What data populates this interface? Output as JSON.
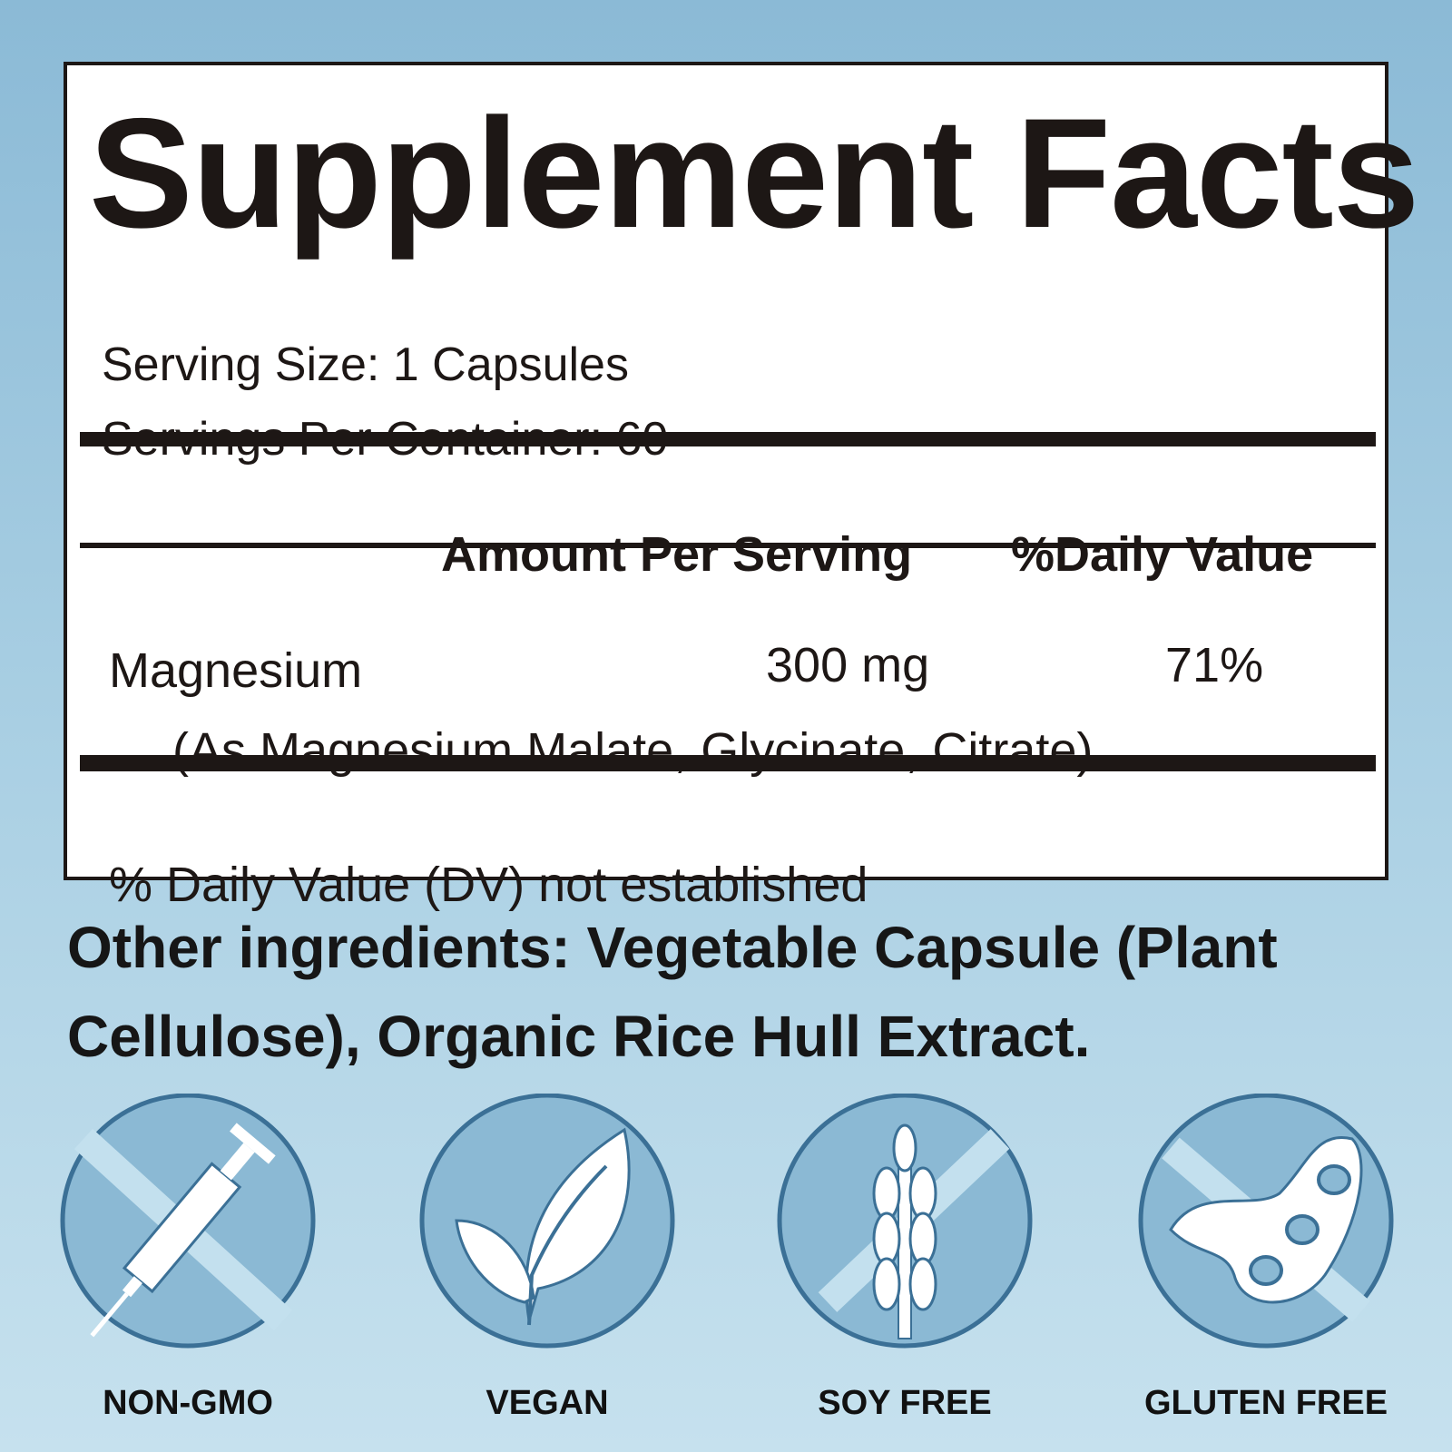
{
  "title": "Supplement Facts",
  "serving_size": "Serving Size: 1 Capsules",
  "servings_per_container": "Servings Per Container: 60",
  "headers": {
    "amount": "Amount Per Serving",
    "dv": "%Daily Value"
  },
  "nutrient": {
    "name": "Magnesium",
    "amount": "300 mg",
    "dv": "71%",
    "source": "(As Magnesium Malate, Glycinate, Citrate)"
  },
  "footnote": "% Daily Value (DV) not established",
  "other_ingredients": "Other ingredients: Vegetable Capsule (Plant Cellulose), Organic Rice Hull Extract.",
  "badges": [
    {
      "label": "NON-GMO",
      "icon": "syringe-crossed-icon"
    },
    {
      "label": "VEGAN",
      "icon": "leaf-icon"
    },
    {
      "label": "SOY FREE",
      "icon": "wheat-crossed-icon"
    },
    {
      "label": "GLUTEN FREE",
      "icon": "soybean-crossed-icon"
    }
  ],
  "colors": {
    "badge_fill": "#8bb9d4",
    "badge_stroke": "#3b7096",
    "text": "#1d1715"
  }
}
